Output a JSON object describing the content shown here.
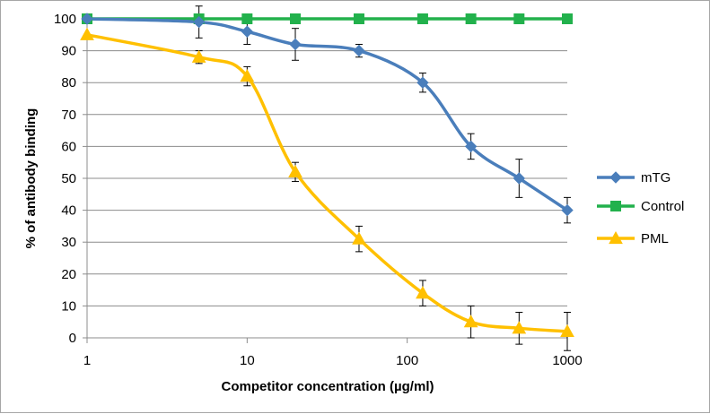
{
  "chart_data": {
    "type": "line",
    "title": "",
    "xlabel": "Competitor concentration (µg/ml)",
    "ylabel": "% of antibody binding",
    "x_scale": "log",
    "xlim": [
      1,
      1000
    ],
    "ylim": [
      0,
      100
    ],
    "x_ticks": [
      1,
      10,
      100,
      1000
    ],
    "x_tick_labels": [
      "1",
      "10",
      "100",
      "1000"
    ],
    "y_ticks": [
      0,
      10,
      20,
      30,
      40,
      50,
      60,
      70,
      80,
      90,
      100
    ],
    "y_tick_labels": [
      "0",
      "10",
      "20",
      "30",
      "40",
      "50",
      "60",
      "70",
      "80",
      "90",
      "100"
    ],
    "grid": "horizontal",
    "legend_position": "right",
    "series": [
      {
        "name": "mTG",
        "color": "#4a7ebb",
        "marker": "diamond",
        "x": [
          1,
          5,
          10,
          20,
          50,
          125,
          250,
          500,
          1000
        ],
        "y": [
          100,
          99,
          96,
          92,
          90,
          80,
          60,
          50,
          40
        ],
        "error": [
          0,
          5,
          4,
          5,
          2,
          3,
          4,
          6,
          4
        ]
      },
      {
        "name": "Control",
        "color": "#22b14c",
        "marker": "square",
        "x": [
          1,
          5,
          10,
          20,
          50,
          125,
          250,
          500,
          1000
        ],
        "y": [
          100,
          100,
          100,
          100,
          100,
          100,
          100,
          100,
          100
        ],
        "error": [
          0,
          0,
          0,
          0,
          0,
          0,
          0,
          0,
          0
        ]
      },
      {
        "name": "PML",
        "color": "#ffc000",
        "marker": "triangle",
        "x": [
          1,
          5,
          10,
          20,
          50,
          125,
          250,
          500,
          1000
        ],
        "y": [
          95,
          88,
          82,
          52,
          31,
          14,
          5,
          3,
          2
        ],
        "error": [
          0,
          2,
          3,
          3,
          4,
          4,
          5,
          5,
          6
        ]
      }
    ]
  }
}
